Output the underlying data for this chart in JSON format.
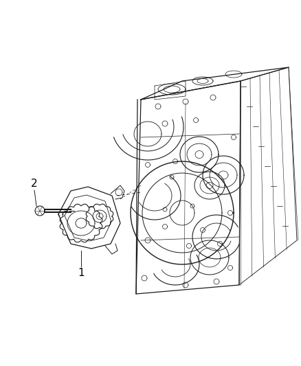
{
  "background_color": "#ffffff",
  "line_color": "#1a1a1a",
  "label_color": "#000000",
  "figsize": [
    4.38,
    5.33
  ],
  "dpi": 100,
  "label1_text": "1",
  "label2_text": "2"
}
